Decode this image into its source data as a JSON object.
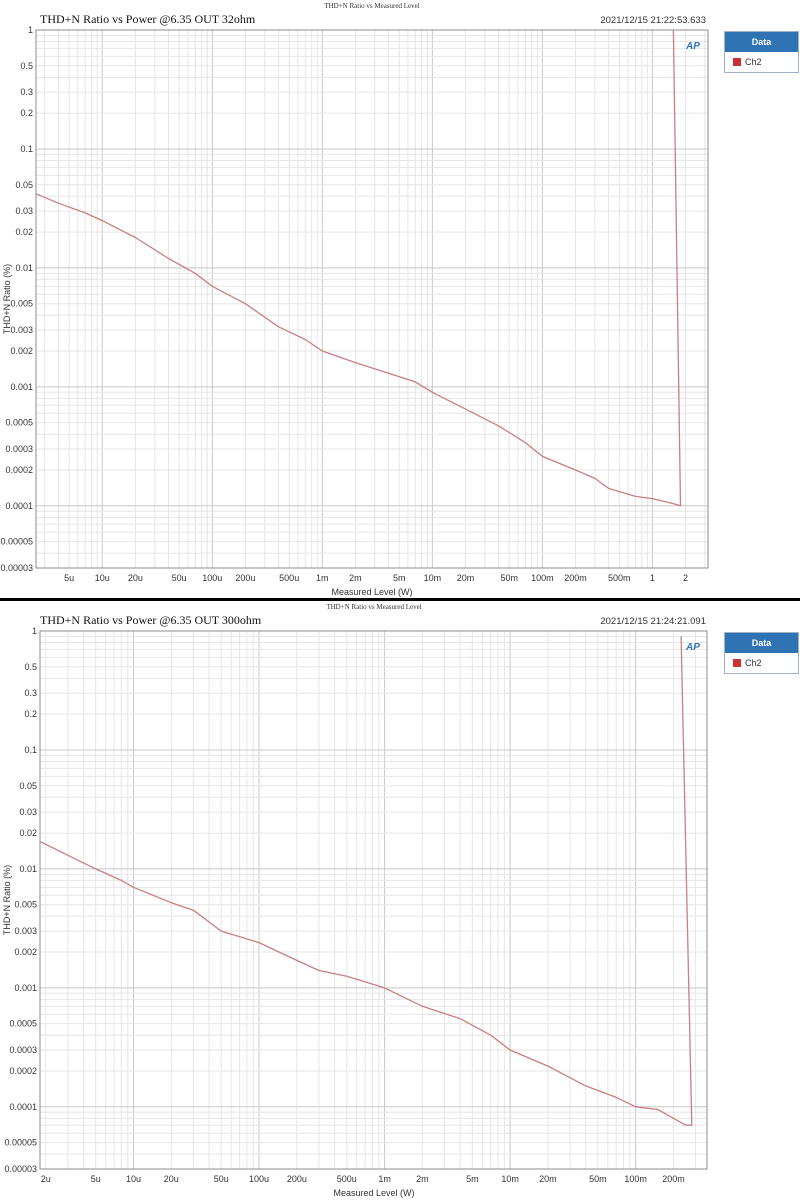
{
  "colors": {
    "series": "#c97f7f",
    "grid_major": "#c8c8c8",
    "grid_minor": "#e6e6e6",
    "legend_header": "#2f73b5",
    "ap_logo": "#2f73b5"
  },
  "panels": [
    {
      "header": {
        "top_title": "THD+N Ratio vs Measured Level",
        "title": "THD+N Ratio vs Power @6.35 OUT 32ohm",
        "timestamp": "2021/12/15 21:22:53.633",
        "logo": "AP"
      },
      "legend": {
        "title": "Data",
        "entries": [
          {
            "label": "Ch2",
            "color": "#c83232"
          }
        ]
      },
      "chart_data": {
        "type": "line",
        "xlabel": "Measured Level (W)",
        "ylabel": "THD+N Ratio (%)",
        "x_scale": "log",
        "y_scale": "log",
        "xlim": [
          2.5e-06,
          3.2
        ],
        "ylim": [
          3e-05,
          1
        ],
        "grid": true,
        "legend_position": "right",
        "x_ticks": [
          {
            "value": 5e-06,
            "label": "5u"
          },
          {
            "value": 1e-05,
            "label": "10u"
          },
          {
            "value": 2e-05,
            "label": "20u"
          },
          {
            "value": 5e-05,
            "label": "50u"
          },
          {
            "value": 0.0001,
            "label": "100u"
          },
          {
            "value": 0.0002,
            "label": "200u"
          },
          {
            "value": 0.0005,
            "label": "500u"
          },
          {
            "value": 0.001,
            "label": "1m"
          },
          {
            "value": 0.002,
            "label": "2m"
          },
          {
            "value": 0.005,
            "label": "5m"
          },
          {
            "value": 0.01,
            "label": "10m"
          },
          {
            "value": 0.02,
            "label": "20m"
          },
          {
            "value": 0.05,
            "label": "50m"
          },
          {
            "value": 0.1,
            "label": "100m"
          },
          {
            "value": 0.2,
            "label": "200m"
          },
          {
            "value": 0.5,
            "label": "500m"
          },
          {
            "value": 1,
            "label": "1"
          },
          {
            "value": 2,
            "label": "2"
          }
        ],
        "y_ticks": [
          {
            "value": 1,
            "label": "1"
          },
          {
            "value": 0.5,
            "label": "0.5"
          },
          {
            "value": 0.3,
            "label": "0.3"
          },
          {
            "value": 0.2,
            "label": "0.2"
          },
          {
            "value": 0.1,
            "label": "0.1"
          },
          {
            "value": 0.05,
            "label": "0.05"
          },
          {
            "value": 0.03,
            "label": "0.03"
          },
          {
            "value": 0.02,
            "label": "0.02"
          },
          {
            "value": 0.01,
            "label": "0.01"
          },
          {
            "value": 0.005,
            "label": "0.005"
          },
          {
            "value": 0.003,
            "label": "0.003"
          },
          {
            "value": 0.002,
            "label": "0.002"
          },
          {
            "value": 0.001,
            "label": "0.001"
          },
          {
            "value": 0.0005,
            "label": "0.0005"
          },
          {
            "value": 0.0003,
            "label": "0.0003"
          },
          {
            "value": 0.0002,
            "label": "0.0002"
          },
          {
            "value": 0.0001,
            "label": "0.0001"
          },
          {
            "value": 5e-05,
            "label": "0.00005"
          },
          {
            "value": 3e-05,
            "label": "0.00003"
          }
        ],
        "series": [
          {
            "name": "Ch2",
            "x": [
              2.5e-06,
              4e-06,
              7e-06,
              1e-05,
              2e-05,
              4e-05,
              7e-05,
              0.0001,
              0.0002,
              0.0004,
              0.0007,
              0.001,
              0.002,
              0.004,
              0.007,
              0.01,
              0.02,
              0.04,
              0.07,
              0.1,
              0.2,
              0.3,
              0.4,
              0.7,
              1,
              1.5,
              1.8,
              1.55
            ],
            "y": [
              0.042,
              0.035,
              0.029,
              0.025,
              0.018,
              0.012,
              0.009,
              0.007,
              0.005,
              0.0032,
              0.0025,
              0.002,
              0.0016,
              0.0013,
              0.0011,
              0.0009,
              0.00065,
              0.00047,
              0.00034,
              0.00026,
              0.0002,
              0.00017,
              0.00014,
              0.00012,
              0.000115,
              0.000105,
              0.0001,
              1.0
            ]
          }
        ]
      }
    },
    {
      "header": {
        "top_title": "THD+N Ratio vs Measured Level",
        "title": "THD+N Ratio vs Power @6.35 OUT 300ohm",
        "timestamp": "2021/12/15 21:24:21.091",
        "logo": "AP"
      },
      "legend": {
        "title": "Data",
        "entries": [
          {
            "label": "Ch2",
            "color": "#c83232"
          }
        ]
      },
      "chart_data": {
        "type": "line",
        "xlabel": "Measured Level (W)",
        "ylabel": "THD+N Ratio (%)",
        "x_scale": "log",
        "y_scale": "log",
        "xlim": [
          1.8e-06,
          0.37
        ],
        "ylim": [
          3e-05,
          1
        ],
        "grid": true,
        "legend_position": "right",
        "x_ticks": [
          {
            "value": 2e-06,
            "label": "2u"
          },
          {
            "value": 5e-06,
            "label": "5u"
          },
          {
            "value": 1e-05,
            "label": "10u"
          },
          {
            "value": 2e-05,
            "label": "20u"
          },
          {
            "value": 5e-05,
            "label": "50u"
          },
          {
            "value": 0.0001,
            "label": "100u"
          },
          {
            "value": 0.0002,
            "label": "200u"
          },
          {
            "value": 0.0005,
            "label": "500u"
          },
          {
            "value": 0.001,
            "label": "1m"
          },
          {
            "value": 0.002,
            "label": "2m"
          },
          {
            "value": 0.005,
            "label": "5m"
          },
          {
            "value": 0.01,
            "label": "10m"
          },
          {
            "value": 0.02,
            "label": "20m"
          },
          {
            "value": 0.05,
            "label": "50m"
          },
          {
            "value": 0.1,
            "label": "100m"
          },
          {
            "value": 0.2,
            "label": "200m"
          }
        ],
        "y_ticks": [
          {
            "value": 1,
            "label": "1"
          },
          {
            "value": 0.5,
            "label": "0.5"
          },
          {
            "value": 0.3,
            "label": "0.3"
          },
          {
            "value": 0.2,
            "label": "0.2"
          },
          {
            "value": 0.1,
            "label": "0.1"
          },
          {
            "value": 0.05,
            "label": "0.05"
          },
          {
            "value": 0.03,
            "label": "0.03"
          },
          {
            "value": 0.02,
            "label": "0.02"
          },
          {
            "value": 0.01,
            "label": "0.01"
          },
          {
            "value": 0.005,
            "label": "0.005"
          },
          {
            "value": 0.003,
            "label": "0.003"
          },
          {
            "value": 0.002,
            "label": "0.002"
          },
          {
            "value": 0.001,
            "label": "0.001"
          },
          {
            "value": 0.0005,
            "label": "0.0005"
          },
          {
            "value": 0.0003,
            "label": "0.0003"
          },
          {
            "value": 0.0002,
            "label": "0.0002"
          },
          {
            "value": 0.0001,
            "label": "0.0001"
          },
          {
            "value": 5e-05,
            "label": "0.00005"
          },
          {
            "value": 3e-05,
            "label": "0.00003"
          }
        ],
        "series": [
          {
            "name": "Ch2",
            "x": [
              1.8e-06,
              3e-06,
              5e-06,
              8e-06,
              1e-05,
              2e-05,
              3e-05,
              5e-05,
              0.0001,
              0.0002,
              0.0003,
              0.0005,
              0.001,
              0.002,
              0.004,
              0.007,
              0.01,
              0.02,
              0.04,
              0.07,
              0.1,
              0.15,
              0.2,
              0.25,
              0.28,
              0.23
            ],
            "y": [
              0.017,
              0.013,
              0.01,
              0.008,
              0.007,
              0.0052,
              0.0045,
              0.003,
              0.0024,
              0.0017,
              0.0014,
              0.00125,
              0.001,
              0.0007,
              0.00055,
              0.0004,
              0.0003,
              0.00022,
              0.00015,
              0.00012,
              0.0001,
              9.5e-05,
              8e-05,
              7e-05,
              7e-05,
              0.9
            ]
          }
        ]
      }
    }
  ]
}
